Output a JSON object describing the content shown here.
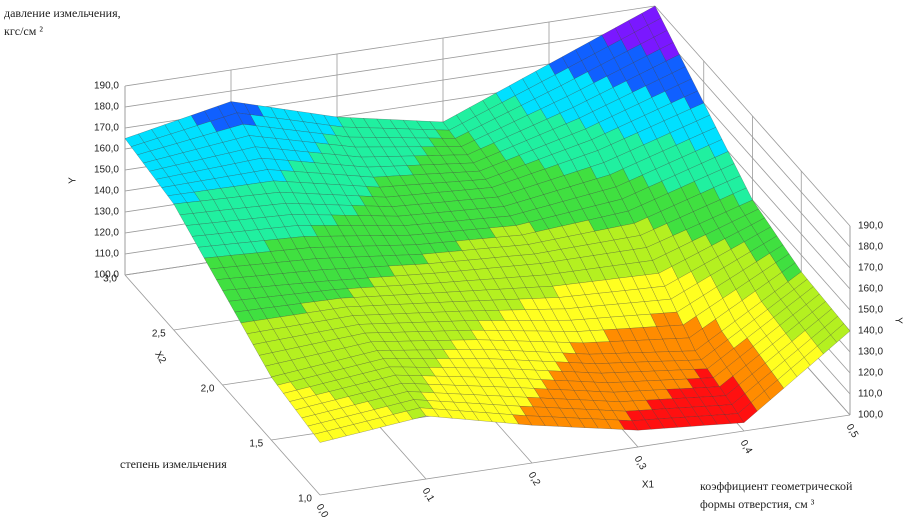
{
  "chart_data": {
    "type": "surface",
    "title_lines": [
      "давление измельчения,",
      "кгс/см ²"
    ],
    "x1_name": "X1",
    "x2_name": "X2",
    "y_name": "Y",
    "x1_title_lines": [
      "коэффициент геометрической",
      "формы отверстия, см ³"
    ],
    "x2_title": "степень измельчения",
    "xlim": [
      0,
      0.5
    ],
    "x2lim": [
      1,
      3
    ],
    "ylim": [
      100,
      190
    ],
    "xticks": [
      {
        "value": 0,
        "label": "0,0"
      },
      {
        "value": 0.1,
        "label": "0,1"
      },
      {
        "value": 0.2,
        "label": "0,2"
      },
      {
        "value": 0.3,
        "label": "0,3"
      },
      {
        "value": 0.4,
        "label": "0,4"
      },
      {
        "value": 0.5,
        "label": "0,5"
      }
    ],
    "x2ticks": [
      {
        "value": 1,
        "label": "1,0"
      },
      {
        "value": 1.5,
        "label": "1,5"
      },
      {
        "value": 2,
        "label": "2,0"
      },
      {
        "value": 2.5,
        "label": "2,5"
      },
      {
        "value": 3,
        "label": "3,0"
      }
    ],
    "yticks": [
      {
        "value": 100,
        "label": "100,0"
      },
      {
        "value": 110,
        "label": "110,0"
      },
      {
        "value": 120,
        "label": "120,0"
      },
      {
        "value": 130,
        "label": "130,0"
      },
      {
        "value": 140,
        "label": "140,0"
      },
      {
        "value": 150,
        "label": "150,0"
      },
      {
        "value": 160,
        "label": "160,0"
      },
      {
        "value": 170,
        "label": "170,0"
      },
      {
        "value": 180,
        "label": "180,0"
      },
      {
        "value": 190,
        "label": "190,0"
      }
    ],
    "x1": [
      0,
      0.1,
      0.2,
      0.3,
      0.4,
      0.5
    ],
    "x2": [
      1,
      1.5,
      2,
      2.5,
      3
    ],
    "z": [
      [
        125,
        130,
        118,
        108,
        104,
        140
      ],
      [
        130,
        135,
        128,
        118,
        112,
        142
      ],
      [
        145,
        142,
        138,
        135,
        135,
        150
      ],
      [
        160,
        158,
        148,
        145,
        155,
        170
      ],
      [
        165,
        175,
        160,
        150,
        170,
        190
      ]
    ],
    "colormap": [
      "#ff1010",
      "#ff8c00",
      "#ffff20",
      "#b4f020",
      "#40e040",
      "#20f0a0",
      "#00e0ff",
      "#1060ff",
      "#7a18ff",
      "#ff20ff"
    ]
  }
}
